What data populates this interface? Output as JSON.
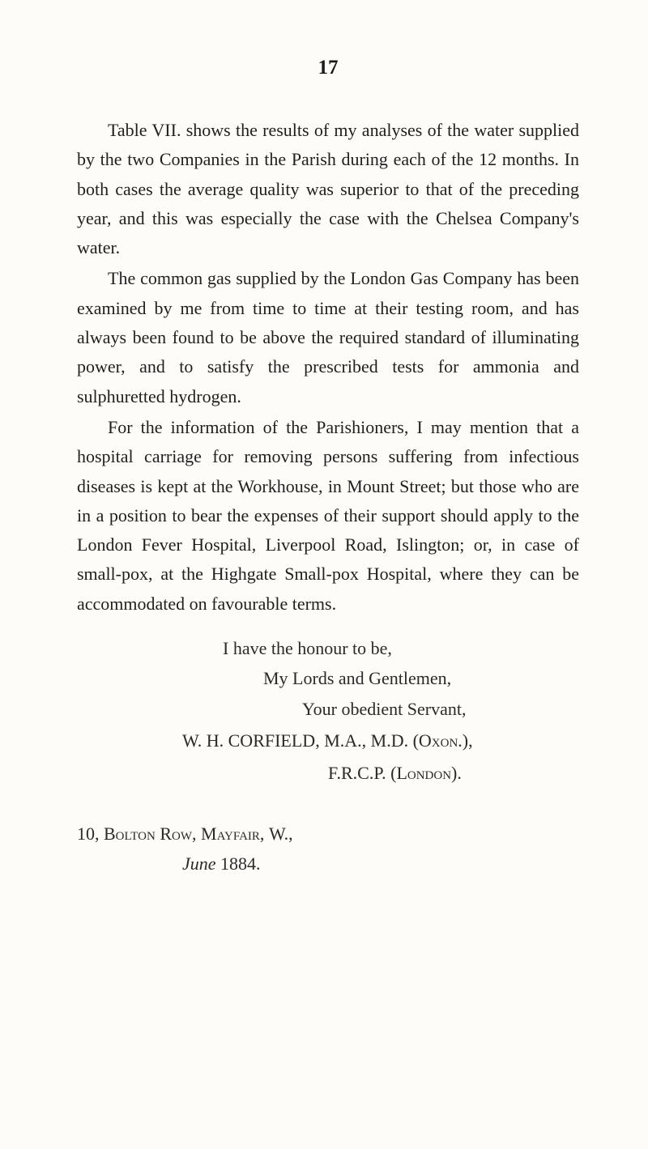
{
  "page_number": "17",
  "paragraphs": [
    "Table VII. shows the results of my analyses of the water supplied by the two Companies in the Parish during each of the 12 months. In both cases the average quality was superior to that of the preceding year, and this was especially the case with the Chelsea Company's water.",
    "The common gas supplied by the London Gas Company has been examined by me from time to time at their testing room, and has always been found to be above the required standard of illuminating power, and to satisfy the prescribed tests for ammonia and sulphuretted hydrogen.",
    "For the information of the Parishioners, I may mention that a hospital carriage for removing persons suffering from infectious diseases is kept at the Workhouse, in Mount Street; but those who are in a position to bear the expenses of their support should apply to the London Fever Hospital, Liverpool Road, Islington; or, in case of small-pox, at the Highgate Small-pox Hospital, where they can be accommodated on favourable terms."
  ],
  "closing": {
    "line1": "I have the honour to be,",
    "line2": "My Lords and Gentlemen,",
    "line3": "Your obedient Servant,",
    "signature_name": "W. H. CORFIELD, M.A., M.D. ",
    "signature_oxon": "(Oxon.),",
    "signature_frcp": "F.R.C.P. ",
    "signature_london": "(London)."
  },
  "address": {
    "line1_prefix": "10, ",
    "line1_smallcaps": "Bolton Row, Mayfair, ",
    "line1_suffix": "W.,",
    "date_italic": "June ",
    "date_year": "1884."
  },
  "colors": {
    "background": "#fdfcf8",
    "text": "#1f1f1f",
    "page_number": "#1a1a1a"
  },
  "typography": {
    "body_fontsize": 22,
    "pagenum_fontsize": 25,
    "line_height": 1.65,
    "font_family": "Times New Roman"
  }
}
